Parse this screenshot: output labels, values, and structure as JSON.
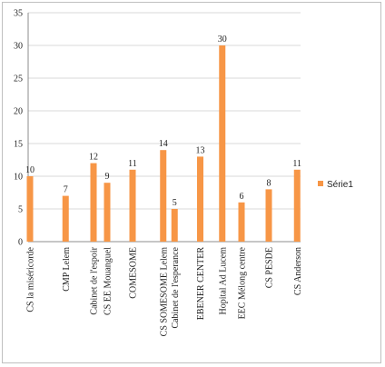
{
  "chart_data": {
    "type": "bar",
    "categories": [
      "CS la miséricorde",
      "CMP Lelem",
      "Cabinet de l'espoir",
      "CS EE Mouanguel",
      "COMESOME",
      "CS SOMESOME Lelem",
      "Cabinet de l'esperance",
      "EBENER CENTER",
      "Hopital Ad Lucem",
      "EEC Mélong centre",
      "CS PESDE",
      "CS Anderson"
    ],
    "series": [
      {
        "name": "Série1",
        "values": [
          10,
          7,
          12,
          9,
          11,
          14,
          5,
          13,
          30,
          6,
          8,
          11
        ]
      }
    ],
    "ylim": [
      0,
      35
    ],
    "yticks": [
      "0",
      "5",
      "10",
      "15",
      "20",
      "25",
      "30",
      "35"
    ],
    "grid": true,
    "legend": "right",
    "bar_color": "#f79646",
    "grid_color": "#d9d9d9"
  }
}
